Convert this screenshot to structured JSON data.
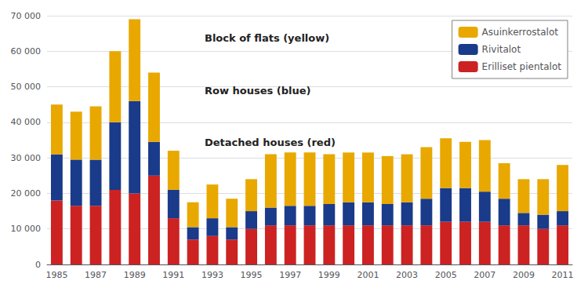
{
  "chart_data": {
    "type": "bar",
    "stacked": true,
    "categories": [
      "1985",
      null,
      "1987",
      null,
      "1989",
      null,
      "1991",
      null,
      "1993",
      null,
      "1995",
      null,
      "1997",
      null,
      "1999",
      null,
      "2001",
      null,
      "2003",
      null,
      "2005",
      null,
      "2007",
      null,
      "2009",
      null,
      "2011"
    ],
    "series": [
      {
        "name": "Erilliset pientalot",
        "color": "#cc2222",
        "values": [
          18000,
          16500,
          16500,
          21000,
          20000,
          25000,
          13000,
          7000,
          8000,
          7000,
          10000,
          11000,
          11000,
          11000,
          11000,
          11000,
          11000,
          11000,
          11000,
          11000,
          12000,
          12000,
          12000,
          11000,
          11000,
          10000,
          11000
        ]
      },
      {
        "name": "Rivitalot",
        "color": "#1a3a8a",
        "values": [
          13000,
          13000,
          13000,
          19000,
          26000,
          9500,
          8000,
          3500,
          5000,
          3500,
          5000,
          5000,
          5500,
          5500,
          6000,
          6500,
          6500,
          6000,
          6500,
          7500,
          9500,
          9500,
          8500,
          7500,
          3500,
          4000,
          4000
        ]
      },
      {
        "name": "Asuinkerrostalot",
        "color": "#e8a800",
        "values": [
          14000,
          13500,
          15000,
          20000,
          23000,
          19500,
          11000,
          7000,
          9500,
          8000,
          9000,
          15000,
          15000,
          15000,
          14000,
          14000,
          14000,
          13500,
          13500,
          14500,
          14000,
          13000,
          14500,
          10000,
          9500,
          10000,
          13000
        ]
      }
    ],
    "ylim": [
      0,
      70000
    ],
    "yticks": [
      0,
      {
        "value": 10000,
        "label": "10 000"
      },
      {
        "value": 20000,
        "label": "20 000"
      },
      {
        "value": 30000,
        "label": "30 000"
      },
      {
        "value": 40000,
        "label": "40 000"
      },
      {
        "value": 50000,
        "label": "50 000"
      },
      {
        "value": 60000,
        "label": "60 000"
      },
      {
        "value": 70000,
        "label": "70 000"
      }
    ],
    "grid": true,
    "legend": "upper right",
    "annotations": [
      "Block of flats (yellow)",
      "Row houses (blue)",
      "Detached houses (red)"
    ]
  }
}
